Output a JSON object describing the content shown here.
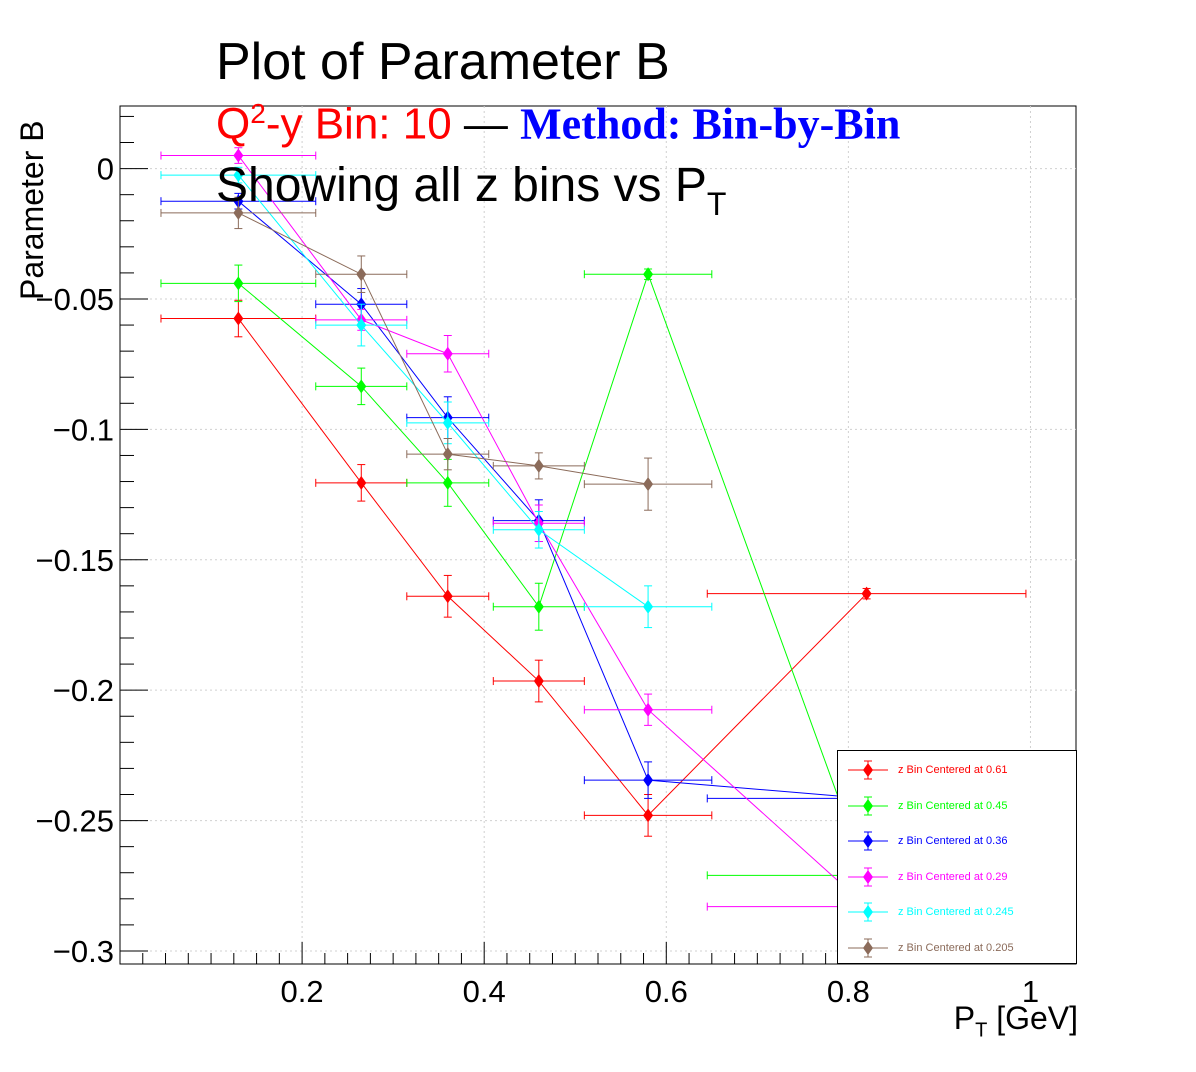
{
  "title": "Plot of Parameter B",
  "subtitle": {
    "q_prefix": "Q",
    "q_sup": "2",
    "q_rest": "-y Bin: 10",
    "dash": " — ",
    "method": "Method: Bin-by-Bin"
  },
  "subtitle2": {
    "text": "Showing all z bins vs P",
    "sub": "T"
  },
  "colors": {
    "red": "#ff0000",
    "green": "#00ff00",
    "blue": "#0000ff",
    "magenta": "#ff00ff",
    "cyan": "#00ffff",
    "brown": "#8b6b5a"
  },
  "chart_data": {
    "type": "scatter",
    "xlabel_main": "P",
    "xlabel_sub": "T",
    "xlabel_unit": " [GeV]",
    "ylabel": "Parameter B",
    "xlim": [
      0.0,
      1.05
    ],
    "ylim": [
      -0.305,
      0.024
    ],
    "xticks": [
      0.2,
      0.4,
      0.6,
      0.8,
      1.0
    ],
    "xtick_labels": [
      "0.2",
      "0.4",
      "0.6",
      "0.8",
      "1"
    ],
    "yticks": [
      0,
      -0.05,
      -0.1,
      -0.15,
      -0.2,
      -0.25,
      -0.3
    ],
    "ytick_labels": [
      "0",
      "−0.05",
      "−0.1",
      "−0.15",
      "−0.2",
      "−0.25",
      "−0.3"
    ],
    "grid": true,
    "legend_position": "bottom-right",
    "series": [
      {
        "name": "z Bin Centered at 0.61",
        "color": "#ff0000",
        "points": [
          {
            "x": 0.13,
            "y": -0.0575,
            "xerr": 0.085,
            "yerr": 0.007
          },
          {
            "x": 0.265,
            "y": -0.1205,
            "xerr": 0.05,
            "yerr": 0.007
          },
          {
            "x": 0.36,
            "y": -0.164,
            "xerr": 0.045,
            "yerr": 0.008
          },
          {
            "x": 0.46,
            "y": -0.1965,
            "xerr": 0.05,
            "yerr": 0.008
          },
          {
            "x": 0.58,
            "y": -0.248,
            "xerr": 0.07,
            "yerr": 0.008
          },
          {
            "x": 0.82,
            "y": -0.163,
            "xerr": 0.175,
            "yerr": 0.002
          }
        ]
      },
      {
        "name": "z Bin Centered at 0.45",
        "color": "#00ff00",
        "points": [
          {
            "x": 0.13,
            "y": -0.044,
            "xerr": 0.085,
            "yerr": 0.007
          },
          {
            "x": 0.265,
            "y": -0.0835,
            "xerr": 0.05,
            "yerr": 0.007
          },
          {
            "x": 0.36,
            "y": -0.1205,
            "xerr": 0.045,
            "yerr": 0.009
          },
          {
            "x": 0.46,
            "y": -0.168,
            "xerr": 0.05,
            "yerr": 0.009
          },
          {
            "x": 0.58,
            "y": -0.0405,
            "xerr": 0.07,
            "yerr": 0.002
          },
          {
            "x": 0.82,
            "y": -0.271,
            "xerr": 0.175,
            "yerr": 0.003
          }
        ]
      },
      {
        "name": "z Bin Centered at 0.36",
        "color": "#0000ff",
        "points": [
          {
            "x": 0.13,
            "y": -0.0125,
            "xerr": 0.085,
            "yerr": 0.003
          },
          {
            "x": 0.265,
            "y": -0.052,
            "xerr": 0.05,
            "yerr": 0.006
          },
          {
            "x": 0.36,
            "y": -0.0955,
            "xerr": 0.045,
            "yerr": 0.008
          },
          {
            "x": 0.46,
            "y": -0.135,
            "xerr": 0.05,
            "yerr": 0.008
          },
          {
            "x": 0.58,
            "y": -0.2345,
            "xerr": 0.07,
            "yerr": 0.007
          },
          {
            "x": 0.82,
            "y": -0.2415,
            "xerr": 0.175,
            "yerr": 0.003
          }
        ]
      },
      {
        "name": "z Bin Centered at 0.29",
        "color": "#ff00ff",
        "points": [
          {
            "x": 0.13,
            "y": 0.005,
            "xerr": 0.085,
            "yerr": 0.003
          },
          {
            "x": 0.265,
            "y": -0.058,
            "xerr": 0.05,
            "yerr": 0.004
          },
          {
            "x": 0.36,
            "y": -0.071,
            "xerr": 0.045,
            "yerr": 0.007
          },
          {
            "x": 0.46,
            "y": -0.136,
            "xerr": 0.05,
            "yerr": 0.007
          },
          {
            "x": 0.58,
            "y": -0.2075,
            "xerr": 0.07,
            "yerr": 0.006
          },
          {
            "x": 0.82,
            "y": -0.283,
            "xerr": 0.175,
            "yerr": 0.003
          }
        ]
      },
      {
        "name": "z Bin Centered at 0.245",
        "color": "#00ffff",
        "points": [
          {
            "x": 0.13,
            "y": -0.0025,
            "xerr": 0.085,
            "yerr": 0.003
          },
          {
            "x": 0.265,
            "y": -0.06,
            "xerr": 0.05,
            "yerr": 0.008
          },
          {
            "x": 0.36,
            "y": -0.0975,
            "xerr": 0.045,
            "yerr": 0.008
          },
          {
            "x": 0.46,
            "y": -0.1385,
            "xerr": 0.05,
            "yerr": 0.007
          },
          {
            "x": 0.58,
            "y": -0.168,
            "xerr": 0.07,
            "yerr": 0.008
          }
        ]
      },
      {
        "name": "z Bin Centered at 0.205",
        "color": "#8b6b5a",
        "points": [
          {
            "x": 0.13,
            "y": -0.017,
            "xerr": 0.085,
            "yerr": 0.006
          },
          {
            "x": 0.265,
            "y": -0.0405,
            "xerr": 0.05,
            "yerr": 0.007
          },
          {
            "x": 0.36,
            "y": -0.1095,
            "xerr": 0.045,
            "yerr": 0.006
          },
          {
            "x": 0.46,
            "y": -0.114,
            "xerr": 0.05,
            "yerr": 0.005
          },
          {
            "x": 0.58,
            "y": -0.121,
            "xerr": 0.07,
            "yerr": 0.01
          }
        ]
      }
    ]
  }
}
